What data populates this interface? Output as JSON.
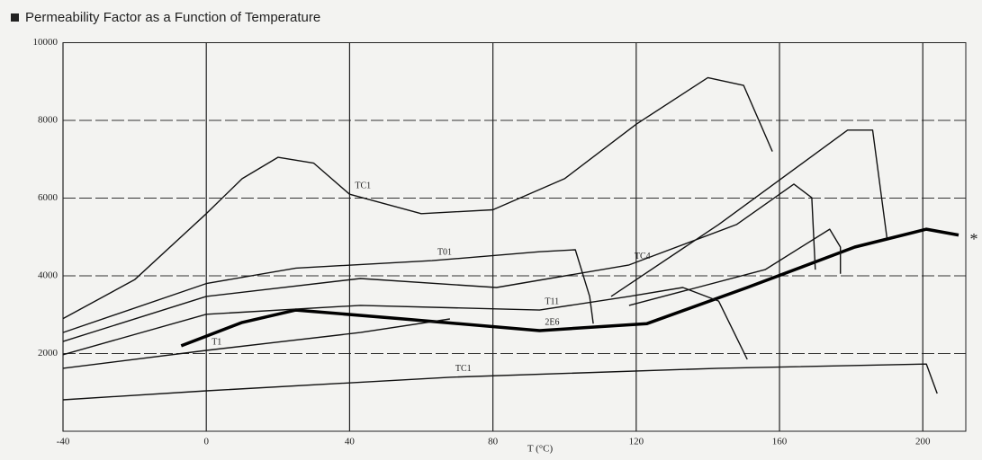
{
  "chart_data": {
    "type": "line",
    "title": "Permeability Factor as a Function of Temperature",
    "x_label": "T (°C)",
    "xlim": [
      -40,
      212
    ],
    "xticks": [
      -40,
      0,
      40,
      80,
      120,
      160,
      200
    ],
    "ylim": [
      0,
      10000
    ],
    "yticks": [
      2000,
      4000,
      6000,
      8000,
      10000
    ],
    "grid": true,
    "series": [
      {
        "name": "TC1",
        "color": "#111111",
        "x": [
          -40,
          -20,
          0,
          10,
          20,
          30,
          40,
          60,
          80,
          100,
          120,
          140,
          150,
          158
        ],
        "values": [
          2900,
          3900,
          5600,
          6500,
          7050,
          6900,
          6100,
          5600,
          5700,
          6500,
          7900,
          9100,
          8900,
          7200
        ]
      },
      {
        "name": "2E6",
        "color": "#000000",
        "x": [
          -7,
          10,
          25,
          55,
          93,
          123,
          151,
          181,
          201,
          210
        ],
        "values": [
          2200,
          2800,
          3120,
          2890,
          2590,
          2770,
          3700,
          4740,
          5200,
          5050
        ]
      },
      {
        "name": "T01",
        "color": "#111111",
        "x": [
          -40,
          0,
          25,
          63,
          93,
          103,
          107,
          108
        ],
        "values": [
          2540,
          3800,
          4200,
          4390,
          4620,
          4670,
          3470,
          2770
        ]
      },
      {
        "name": "TC4",
        "color": "#111111",
        "x": [
          -40,
          0,
          43,
          81,
          118,
          148,
          164,
          169,
          170
        ],
        "values": [
          2310,
          3470,
          3930,
          3700,
          4280,
          5320,
          6360,
          6010,
          4160
        ]
      },
      {
        "name": null,
        "color": "#111111",
        "x": [
          113,
          143,
          179,
          186,
          190
        ],
        "values": [
          3470,
          5320,
          7750,
          7750,
          4970
        ]
      },
      {
        "name": null,
        "color": "#111111",
        "x": [
          118,
          156,
          174,
          177,
          177
        ],
        "values": [
          3240,
          4160,
          5200,
          4740,
          4050
        ]
      },
      {
        "name": "T11",
        "color": "#111111",
        "x": [
          -40,
          0,
          43,
          93,
          118,
          133,
          143,
          151
        ],
        "values": [
          1970,
          3010,
          3240,
          3120,
          3470,
          3700,
          3350,
          1850
        ]
      },
      {
        "name": "T1",
        "color": "#111111",
        "x": [
          -40,
          0,
          43,
          68
        ],
        "values": [
          1620,
          2080,
          2540,
          2890
        ]
      },
      {
        "name": "TC1",
        "color": "#111111",
        "x": [
          -40,
          0,
          68,
          143,
          201,
          204
        ],
        "values": [
          810,
          1040,
          1390,
          1620,
          1730,
          970
        ]
      }
    ],
    "annotation": "*"
  }
}
